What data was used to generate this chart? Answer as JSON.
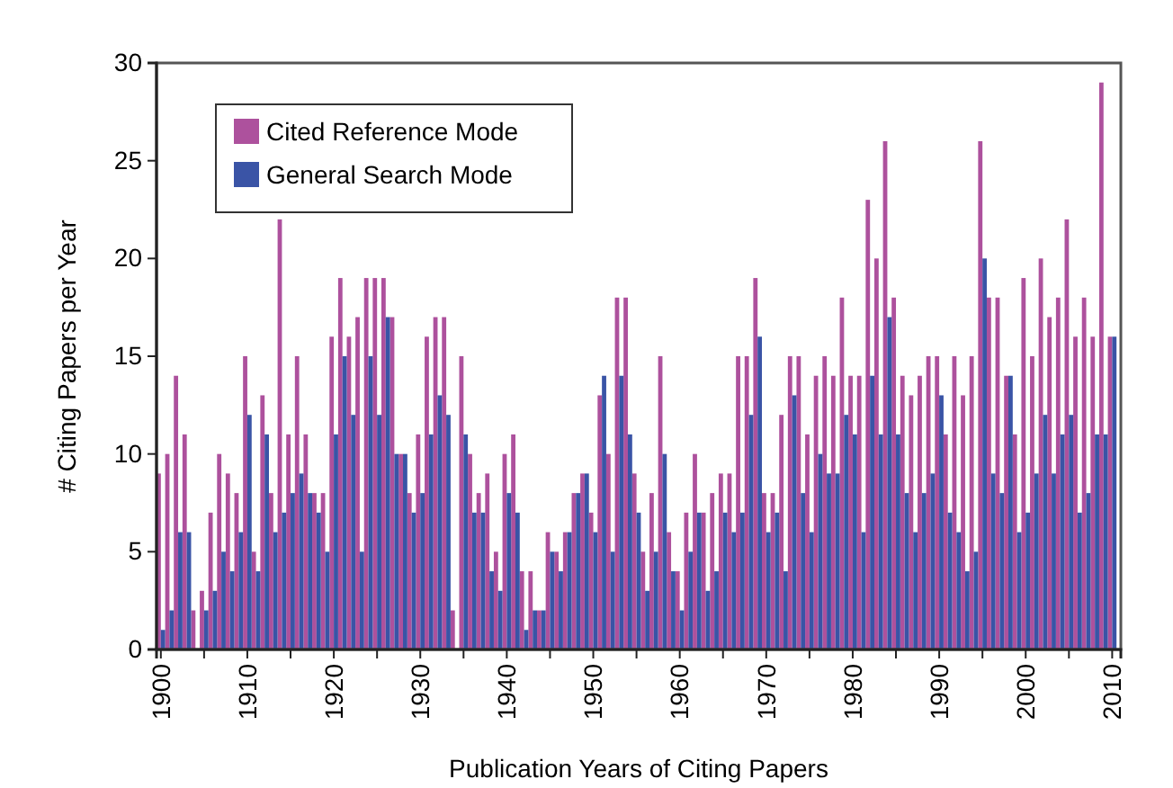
{
  "chart_data": {
    "type": "bar",
    "xlabel": "Publication Years of Citing Papers",
    "ylabel": "# Citing Papers per Year",
    "x": [
      1900,
      1901,
      1902,
      1903,
      1904,
      1905,
      1906,
      1907,
      1908,
      1909,
      1910,
      1911,
      1912,
      1913,
      1914,
      1915,
      1916,
      1917,
      1918,
      1919,
      1920,
      1921,
      1922,
      1923,
      1924,
      1925,
      1926,
      1927,
      1928,
      1929,
      1930,
      1931,
      1932,
      1933,
      1934,
      1935,
      1936,
      1937,
      1938,
      1939,
      1940,
      1941,
      1942,
      1943,
      1944,
      1945,
      1946,
      1947,
      1948,
      1949,
      1950,
      1951,
      1952,
      1953,
      1954,
      1955,
      1956,
      1957,
      1958,
      1959,
      1960,
      1961,
      1962,
      1963,
      1964,
      1965,
      1966,
      1967,
      1968,
      1969,
      1970,
      1971,
      1972,
      1973,
      1974,
      1975,
      1976,
      1977,
      1978,
      1979,
      1980,
      1981,
      1982,
      1983,
      1984,
      1985,
      1986,
      1987,
      1988,
      1989,
      1990,
      1991,
      1992,
      1993,
      1994,
      1995,
      1996,
      1997,
      1998,
      1999,
      2000,
      2001,
      2002,
      2003,
      2004,
      2005,
      2006,
      2007,
      2008,
      2009,
      2010
    ],
    "series": [
      {
        "name": "Cited Reference Mode",
        "color": "#ad519d",
        "values": [
          9,
          10,
          14,
          11,
          2,
          3,
          7,
          10,
          9,
          8,
          15,
          5,
          13,
          8,
          22,
          11,
          15,
          11,
          8,
          8,
          16,
          19,
          16,
          17,
          19,
          19,
          19,
          17,
          10,
          8,
          11,
          16,
          17,
          17,
          2,
          15,
          10,
          8,
          9,
          5,
          10,
          11,
          4,
          4,
          2,
          6,
          5,
          6,
          8,
          9,
          7,
          13,
          10,
          18,
          18,
          9,
          5,
          8,
          15,
          6,
          4,
          7,
          10,
          7,
          8,
          9,
          9,
          15,
          15,
          19,
          8,
          8,
          12,
          15,
          15,
          11,
          14,
          15,
          14,
          18,
          14,
          14,
          23,
          20,
          26,
          18,
          14,
          13,
          14,
          15,
          15,
          11,
          15,
          13,
          15,
          26,
          18,
          18,
          14,
          11,
          19,
          15,
          20,
          17,
          18,
          22,
          16,
          18,
          16,
          29,
          16
        ]
      },
      {
        "name": "General Search Mode",
        "color": "#3a54a6",
        "values": [
          1,
          2,
          6,
          6,
          0,
          2,
          3,
          5,
          4,
          6,
          12,
          4,
          11,
          6,
          7,
          8,
          9,
          8,
          7,
          5,
          11,
          15,
          12,
          5,
          15,
          12,
          17,
          10,
          10,
          7,
          8,
          11,
          13,
          12,
          0,
          11,
          7,
          7,
          4,
          3,
          8,
          7,
          1,
          2,
          2,
          5,
          4,
          6,
          8,
          9,
          6,
          14,
          5,
          14,
          11,
          7,
          3,
          5,
          10,
          4,
          2,
          5,
          7,
          3,
          4,
          7,
          6,
          7,
          12,
          16,
          6,
          7,
          4,
          13,
          8,
          6,
          10,
          9,
          9,
          12,
          11,
          6,
          14,
          11,
          17,
          11,
          8,
          6,
          8,
          9,
          13,
          7,
          6,
          4,
          5,
          20,
          9,
          8,
          14,
          6,
          7,
          9,
          12,
          9,
          11,
          12,
          7,
          8,
          11,
          11,
          16
        ]
      }
    ],
    "xlim": [
      1899.5,
      2011
    ],
    "xticks": [
      1900,
      {
        "value": 1905,
        "label": null
      },
      1910,
      {
        "value": 1915,
        "label": null
      },
      1920,
      {
        "value": 1925,
        "label": null
      },
      1930,
      {
        "value": 1935,
        "label": null
      },
      1940,
      {
        "value": 1945,
        "label": null
      },
      1950,
      {
        "value": 1955,
        "label": null
      },
      1960,
      {
        "value": 1965,
        "label": null
      },
      1970,
      {
        "value": 1975,
        "label": null
      },
      1980,
      {
        "value": 1985,
        "label": null
      },
      1990,
      {
        "value": 1995,
        "label": null
      },
      2000,
      {
        "value": 2005,
        "label": null
      },
      2010
    ],
    "ylim": [
      0,
      30
    ],
    "yticks": [
      0,
      5,
      10,
      15,
      20,
      25,
      30
    ],
    "legend": "top left"
  }
}
